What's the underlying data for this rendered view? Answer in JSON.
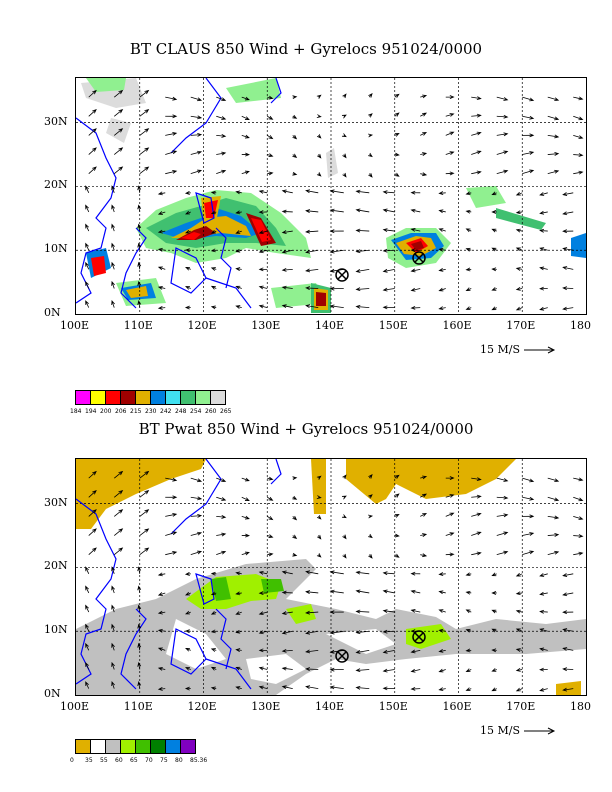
{
  "panel1": {
    "title": "BT CLAUS 850 Wind + Gyrelocs 951024/0000",
    "colorbar_colors": [
      "#ff00ff",
      "#ffff00",
      "#ff0000",
      "#a00000",
      "#e0b000",
      "#0080e0",
      "#40e0f0",
      "#40c070",
      "#90f090",
      "#dcdcdc"
    ],
    "colorbar_labels": [
      "184",
      "194",
      "200",
      "206",
      "215",
      "230",
      "242",
      "248",
      "254",
      "260",
      "265"
    ]
  },
  "panel2": {
    "title": "BT Pwat 850 Wind + Gyrelocs 951024/0000",
    "colorbar_colors": [
      "#e0b000",
      "#ffffff",
      "#c0c0c0",
      "#a0f000",
      "#40c000",
      "#008000",
      "#0080e0",
      "#8000c0"
    ],
    "colorbar_labels": [
      "0",
      "35",
      "55",
      "60",
      "65",
      "70",
      "75",
      "80",
      "85.36"
    ]
  },
  "axes": {
    "x_ticks": [
      "100E",
      "110E",
      "120E",
      "130E",
      "140E",
      "150E",
      "160E",
      "170E",
      "180"
    ],
    "y_ticks": [
      "30N",
      "20N",
      "10N",
      "0N"
    ],
    "x_range": [
      100,
      180
    ],
    "y_range": [
      0,
      37
    ]
  },
  "wind_scale_label": "15 M/S",
  "colors": {
    "coast": "#0000ff",
    "gyre_marker": "#000000"
  },
  "chart_data": [
    {
      "type": "heatmap",
      "title": "BT CLAUS 850 Wind + Gyrelocs 951024/0000",
      "overlay": "wind-vectors",
      "gyre_locations": [
        {
          "lon": 143,
          "lat": 6.5
        },
        {
          "lon": 155,
          "lat": 9
        }
      ],
      "xlim": [
        100,
        180
      ],
      "ylim": [
        0,
        37
      ],
      "grid": true
    },
    {
      "type": "heatmap",
      "title": "BT Pwat 850 Wind + Gyrelocs 951024/0000",
      "overlay": "wind-vectors",
      "gyre_locations": [
        {
          "lon": 143,
          "lat": 6.5
        },
        {
          "lon": 155,
          "lat": 9
        }
      ],
      "xlim": [
        100,
        180
      ],
      "ylim": [
        0,
        37
      ],
      "grid": true
    }
  ]
}
